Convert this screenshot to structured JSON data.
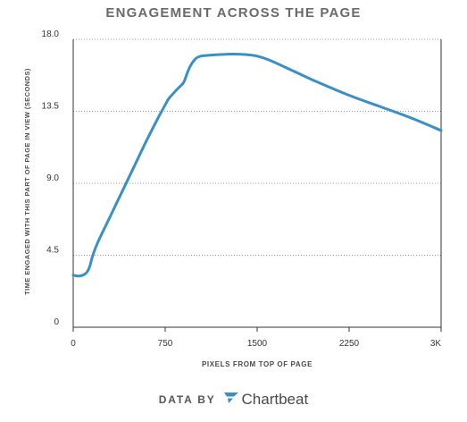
{
  "chart_data": {
    "type": "line",
    "title": "ENGAGEMENT ACROSS THE PAGE",
    "xlabel": "PIXELS FROM TOP OF PAGE",
    "ylabel": "TIME ENGAGED WITH THIS PART OF PAGE IN VIEW (SECONDS)",
    "xlim": [
      0,
      3000
    ],
    "ylim": [
      0,
      18
    ],
    "x_ticks": [
      0,
      750,
      1500,
      2250,
      3000
    ],
    "x_tick_labels": [
      "0",
      "750",
      "1500",
      "2250",
      "3K"
    ],
    "y_ticks": [
      0,
      4.5,
      9,
      13.5,
      18
    ],
    "y_tick_labels": [
      "0",
      "4.5",
      "9.0",
      "13.5",
      "18.0"
    ],
    "grid": "horizontal dotted",
    "series": [
      {
        "color": "#3a8fc4",
        "x": [
          0,
          50,
          100,
          130,
          160,
          200,
          300,
          400,
          500,
          600,
          700,
          750,
          780,
          850,
          900,
          930,
          960,
          1000,
          1040,
          1100,
          1200,
          1300,
          1400,
          1500,
          1600,
          1800,
          2000,
          2250,
          2500,
          2750,
          3000
        ],
        "values": [
          3.25,
          3.2,
          3.35,
          3.7,
          4.5,
          5.3,
          6.9,
          8.5,
          10.1,
          11.7,
          13.2,
          13.9,
          14.3,
          14.9,
          15.3,
          15.9,
          16.4,
          16.8,
          16.95,
          17.0,
          17.05,
          17.08,
          17.05,
          16.95,
          16.7,
          16.0,
          15.3,
          14.5,
          13.8,
          13.1,
          12.3
        ]
      }
    ]
  },
  "footer": {
    "data_by": "DATA BY",
    "brand": "Chartbeat",
    "brand_icon": "chartbeat-logo-icon",
    "brand_color": "#3a8fc4"
  }
}
